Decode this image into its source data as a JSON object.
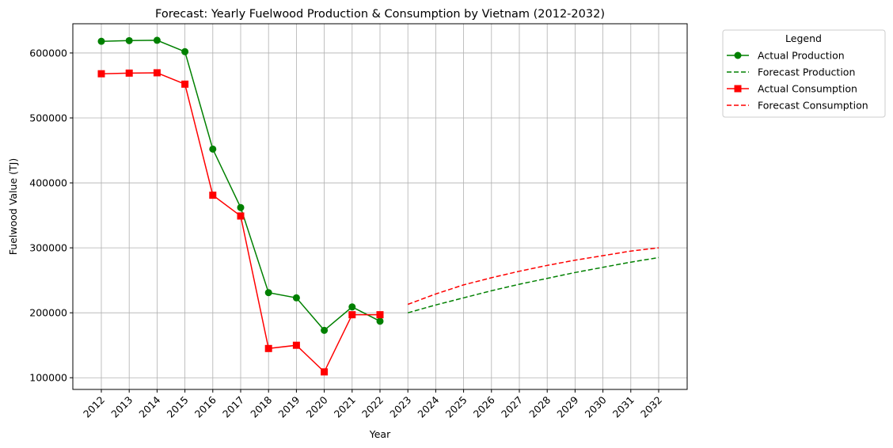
{
  "chart_data": {
    "type": "line",
    "title": "Forecast: Yearly Fuelwood Production & Consumption by Vietnam (2012-2032)",
    "xlabel": "Year",
    "ylabel": "Fuelwood Value (TJ)",
    "categories": [
      "2012",
      "2013",
      "2014",
      "2015",
      "2016",
      "2017",
      "2018",
      "2019",
      "2020",
      "2021",
      "2022",
      "2023",
      "2024",
      "2025",
      "2026",
      "2027",
      "2028",
      "2029",
      "2030",
      "2031",
      "2032"
    ],
    "yticks": [
      "100000",
      "200000",
      "300000",
      "400000",
      "500000",
      "600000"
    ],
    "ylim": [
      82000,
      645000
    ],
    "grid": true,
    "legend": {
      "title": "Legend",
      "placement": "outside-top-right"
    },
    "series": [
      {
        "name": "Actual Production",
        "color": "#008000",
        "style": "solid",
        "marker": "circle",
        "x": [
          "2012",
          "2013",
          "2014",
          "2015",
          "2016",
          "2017",
          "2018",
          "2019",
          "2020",
          "2021",
          "2022"
        ],
        "values": [
          618000,
          619000,
          619500,
          602000,
          452000,
          362000,
          231000,
          223000,
          173000,
          209000,
          187000
        ]
      },
      {
        "name": "Forecast Production",
        "color": "#008000",
        "style": "dashed",
        "marker": "none",
        "x": [
          "2023",
          "2024",
          "2025",
          "2026",
          "2027",
          "2028",
          "2029",
          "2030",
          "2031",
          "2032"
        ],
        "values": [
          200000,
          212000,
          223000,
          234000,
          244000,
          253000,
          262000,
          270000,
          278000,
          285000
        ]
      },
      {
        "name": "Actual Consumption",
        "color": "#ff0000",
        "style": "solid",
        "marker": "square",
        "x": [
          "2012",
          "2013",
          "2014",
          "2015",
          "2016",
          "2017",
          "2018",
          "2019",
          "2020",
          "2021",
          "2022"
        ],
        "values": [
          568000,
          569000,
          569500,
          552000,
          381000,
          349000,
          145000,
          150000,
          109000,
          197000,
          197000
        ]
      },
      {
        "name": "Forecast Consumption",
        "color": "#ff0000",
        "style": "dashed",
        "marker": "none",
        "x": [
          "2023",
          "2024",
          "2025",
          "2026",
          "2027",
          "2028",
          "2029",
          "2030",
          "2031",
          "2032"
        ],
        "values": [
          213000,
          229000,
          243000,
          254000,
          264000,
          273000,
          281000,
          288000,
          295000,
          300000
        ]
      }
    ]
  }
}
